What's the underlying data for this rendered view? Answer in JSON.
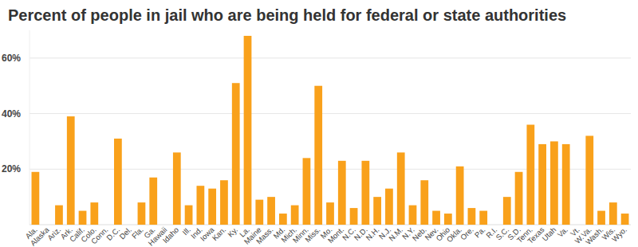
{
  "chart_data": {
    "type": "bar",
    "title": "Percent of people in jail who are being held for federal or state authorities",
    "categories": [
      "Ala.",
      "Alaska",
      "Ariz.",
      "Ark.",
      "Calif.",
      "Colo.",
      "Conn.",
      "D.C.",
      "Del.",
      "Fla.",
      "Ga.",
      "Hawaii",
      "Idaho",
      "Ill.",
      "Ind.",
      "Iowa",
      "Kan.",
      "Ky.",
      "La.",
      "Maine",
      "Mass.",
      "Md.",
      "Mich.",
      "Minn.",
      "Miss.",
      "Mo.",
      "Mont.",
      "N.C.",
      "N.D.",
      "N.H.",
      "N.J.",
      "N.M.",
      "N.Y.",
      "Neb.",
      "Nev.",
      "Ohio",
      "Okla.",
      "Ore.",
      "Pa.",
      "R.I.",
      "S.C.",
      "S.D.",
      "Tenn.",
      "Texas",
      "Utah",
      "Va.",
      "Vt.",
      "W.Va.",
      "Wash.",
      "Wis.",
      "Wyo."
    ],
    "values": [
      19,
      0,
      7,
      39,
      5,
      8,
      0,
      31,
      0,
      8,
      17,
      0,
      26,
      7,
      14,
      13,
      16,
      51,
      68,
      9,
      10,
      4,
      7,
      24,
      50,
      8,
      23,
      6,
      23,
      10,
      13,
      26,
      7,
      16,
      5,
      4,
      21,
      6,
      5,
      0,
      10,
      19,
      36,
      29,
      30,
      29,
      0,
      32,
      5,
      8,
      4
    ],
    "color": "#f9a11b",
    "ylim": [
      0,
      70
    ],
    "yticks": [
      {
        "value": 20,
        "label": "20%"
      },
      {
        "value": 40,
        "label": "40%"
      },
      {
        "value": 60,
        "label": "60%"
      }
    ],
    "grid": true
  }
}
